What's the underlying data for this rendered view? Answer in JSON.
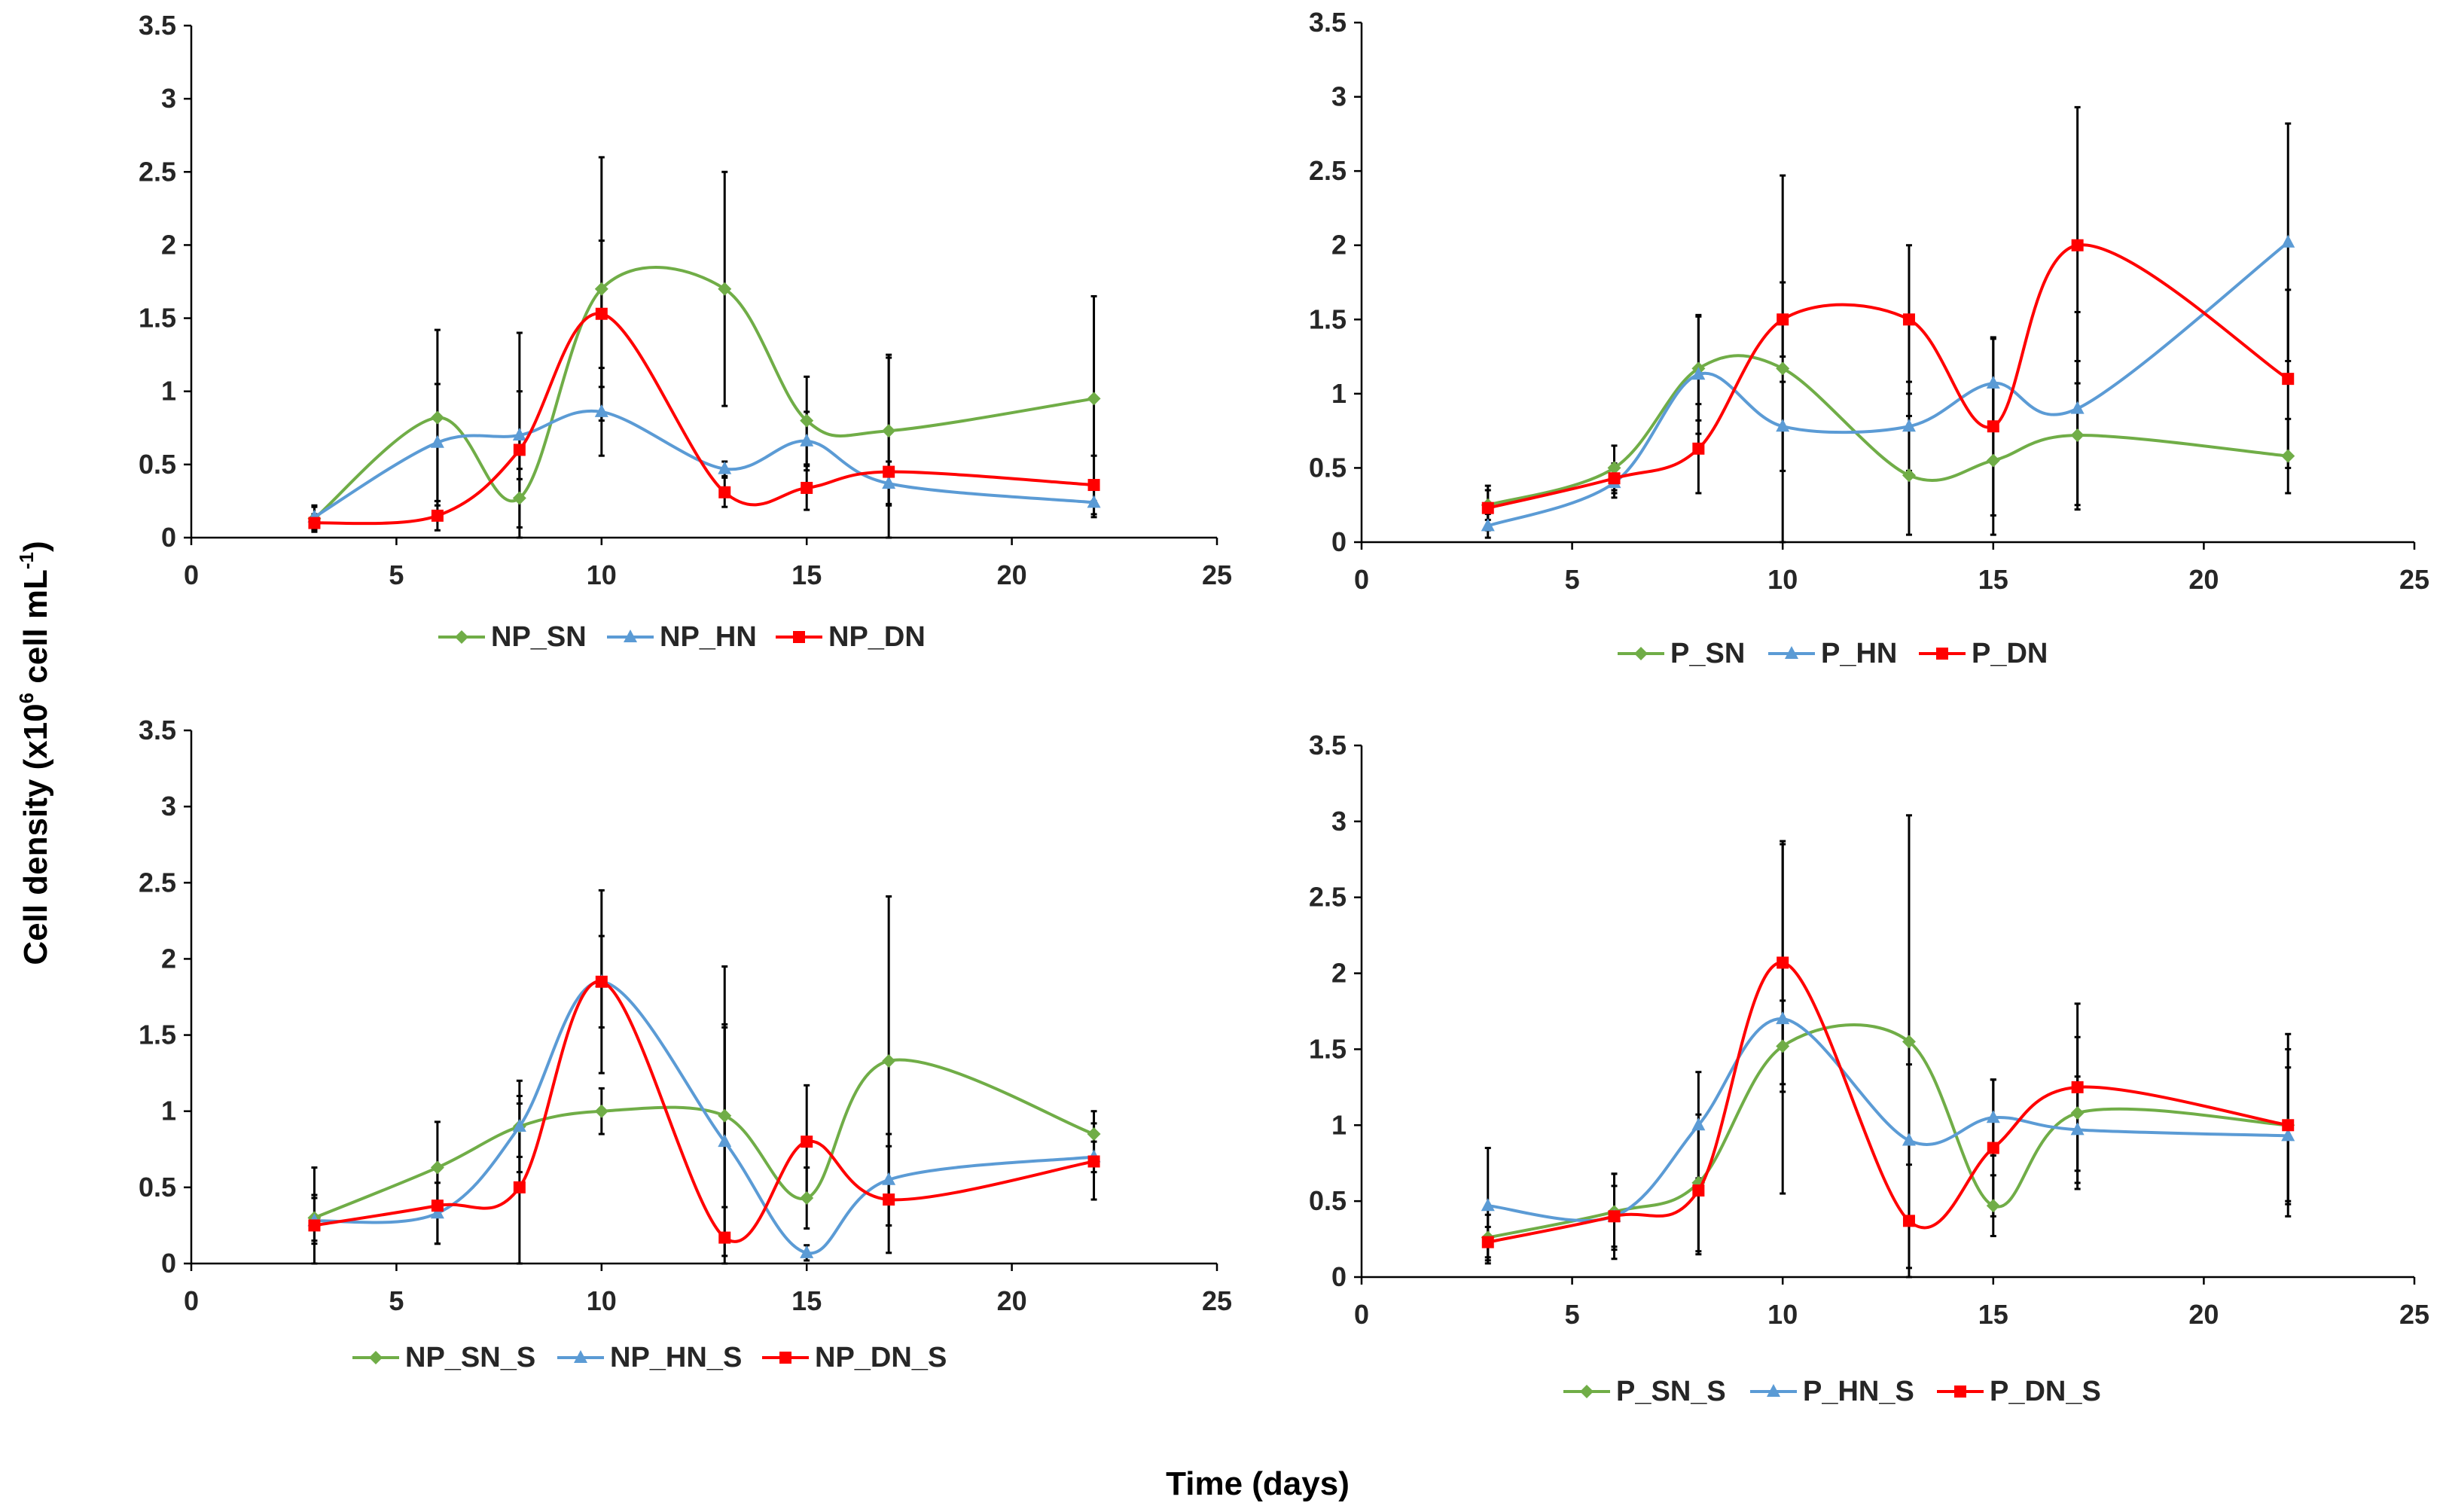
{
  "figure": {
    "ylabel": {
      "main": "Cell density (x10",
      "sup1": "6",
      "mid": " cell mL",
      "sup2": "-1",
      "end": ")"
    },
    "xlabel": "Time (days)"
  },
  "colors": {
    "SN": "#70AD47",
    "HN": "#5B9BD5",
    "DN": "#FF0000",
    "error": "#000000",
    "axis": "#000000"
  },
  "chart_data": [
    {
      "id": "panel-np",
      "type": "line",
      "xlim": [
        0,
        25
      ],
      "ylim": [
        0,
        3.5
      ],
      "xticks": [
        "0",
        "5",
        "10",
        "15",
        "20",
        "25"
      ],
      "yticks": [
        "0",
        "0.5",
        "1",
        "1.5",
        "2",
        "2.5",
        "3",
        "3.5"
      ],
      "x": [
        3,
        6,
        8,
        10,
        13,
        15,
        17,
        22
      ],
      "series": [
        {
          "name": "NP_SN",
          "key": "SN",
          "marker": "diamond",
          "values": [
            0.13,
            0.82,
            0.27,
            1.7,
            1.7,
            0.8,
            0.73,
            0.95
          ],
          "errors": [
            0.08,
            0.6,
            0.2,
            0.9,
            0.8,
            0.3,
            0.5,
            0.7
          ]
        },
        {
          "name": "NP_HN",
          "key": "HN",
          "marker": "triangle",
          "values": [
            0.14,
            0.65,
            0.7,
            0.86,
            0.47,
            0.66,
            0.37,
            0.24
          ],
          "errors": [
            0.08,
            0.4,
            0.3,
            0.3,
            0.05,
            0.2,
            0.15,
            0.1
          ]
        },
        {
          "name": "NP_DN",
          "key": "DN",
          "marker": "square",
          "values": [
            0.1,
            0.15,
            0.6,
            1.53,
            0.31,
            0.34,
            0.45,
            0.36
          ],
          "errors": [
            0.06,
            0.1,
            0.8,
            0.5,
            0.1,
            0.15,
            0.8,
            0.2
          ]
        }
      ]
    },
    {
      "id": "panel-p",
      "type": "line",
      "xlim": [
        0,
        25
      ],
      "ylim": [
        0,
        3.5
      ],
      "xticks": [
        "0",
        "5",
        "10",
        "15",
        "20",
        "25"
      ],
      "yticks": [
        "0",
        "0.5",
        "1",
        "1.5",
        "2",
        "2.5",
        "3",
        "3.5"
      ],
      "x": [
        3,
        6,
        8,
        10,
        13,
        15,
        17,
        22
      ],
      "series": [
        {
          "name": "P_SN",
          "key": "SN",
          "marker": "diamond",
          "values": [
            0.25,
            0.5,
            1.17,
            1.17,
            0.45,
            0.55,
            0.72,
            0.58
          ],
          "errors": [
            0.1,
            0.15,
            0.35,
            1.3,
            0.4,
            0.5,
            0.5,
            0.25
          ]
        },
        {
          "name": "P_HN",
          "key": "HN",
          "marker": "triangle",
          "values": [
            0.11,
            0.4,
            1.13,
            0.78,
            0.78,
            1.07,
            0.9,
            2.02
          ],
          "errors": [
            0.08,
            0.1,
            0.4,
            0.3,
            0.3,
            0.3,
            0.65,
            0.8
          ]
        },
        {
          "name": "P_DN",
          "key": "DN",
          "marker": "square",
          "values": [
            0.23,
            0.43,
            0.63,
            1.5,
            1.5,
            0.78,
            2.0,
            1.1
          ],
          "errors": [
            0.15,
            0.1,
            0.3,
            0.25,
            0.5,
            0.6,
            0.93,
            0.6
          ]
        }
      ]
    },
    {
      "id": "panel-np-s",
      "type": "line",
      "xlim": [
        0,
        25
      ],
      "ylim": [
        0,
        3.5
      ],
      "xticks": [
        "0",
        "5",
        "10",
        "15",
        "20",
        "25"
      ],
      "yticks": [
        "0",
        "0.5",
        "1",
        "1.5",
        "2",
        "2.5",
        "3",
        "3.5"
      ],
      "x": [
        3,
        6,
        8,
        10,
        13,
        15,
        17,
        22
      ],
      "series": [
        {
          "name": "NP_SN_S",
          "key": "SN",
          "marker": "diamond",
          "values": [
            0.3,
            0.63,
            0.9,
            1.0,
            0.97,
            0.43,
            1.33,
            0.85
          ],
          "errors": [
            0.15,
            0.3,
            0.2,
            0.15,
            0.6,
            0.2,
            1.08,
            0.15
          ]
        },
        {
          "name": "NP_HN_S",
          "key": "HN",
          "marker": "triangle",
          "values": [
            0.28,
            0.33,
            0.9,
            1.85,
            0.8,
            0.07,
            0.55,
            0.7
          ],
          "errors": [
            0.15,
            0.2,
            0.3,
            0.6,
            0.75,
            0.05,
            0.3,
            0.1
          ]
        },
        {
          "name": "NP_DN_S",
          "key": "DN",
          "marker": "square",
          "values": [
            0.25,
            0.38,
            0.5,
            1.85,
            0.17,
            0.8,
            0.42,
            0.67
          ],
          "errors": [
            0.38,
            0.25,
            0.55,
            0.3,
            1.78,
            0.37,
            0.35,
            0.25
          ]
        }
      ]
    },
    {
      "id": "panel-p-s",
      "type": "line",
      "xlim": [
        0,
        25
      ],
      "ylim": [
        0,
        3.5
      ],
      "xticks": [
        "0",
        "5",
        "10",
        "15",
        "20",
        "25"
      ],
      "yticks": [
        "0",
        "0.5",
        "1",
        "1.5",
        "2",
        "2.5",
        "3",
        "3.5"
      ],
      "x": [
        3,
        6,
        8,
        10,
        13,
        15,
        17,
        22
      ],
      "series": [
        {
          "name": "P_SN_S",
          "key": "SN",
          "marker": "diamond",
          "values": [
            0.26,
            0.43,
            0.62,
            1.52,
            1.55,
            0.47,
            1.08,
            1.0
          ],
          "errors": [
            0.15,
            0.25,
            0.45,
            0.3,
            1.49,
            0.2,
            0.5,
            0.5
          ]
        },
        {
          "name": "P_HN_S",
          "key": "HN",
          "marker": "triangle",
          "values": [
            0.47,
            0.4,
            1.0,
            1.7,
            0.9,
            1.05,
            0.97,
            0.93
          ],
          "errors": [
            0.38,
            0.2,
            0.35,
            1.15,
            0.5,
            0.25,
            0.35,
            0.45
          ]
        },
        {
          "name": "P_DN_S",
          "key": "DN",
          "marker": "square",
          "values": [
            0.23,
            0.4,
            0.57,
            2.07,
            0.37,
            0.85,
            1.25,
            1.0
          ],
          "errors": [
            0.1,
            0.28,
            0.42,
            0.8,
            0.37,
            0.45,
            0.55,
            0.6
          ]
        }
      ]
    }
  ]
}
